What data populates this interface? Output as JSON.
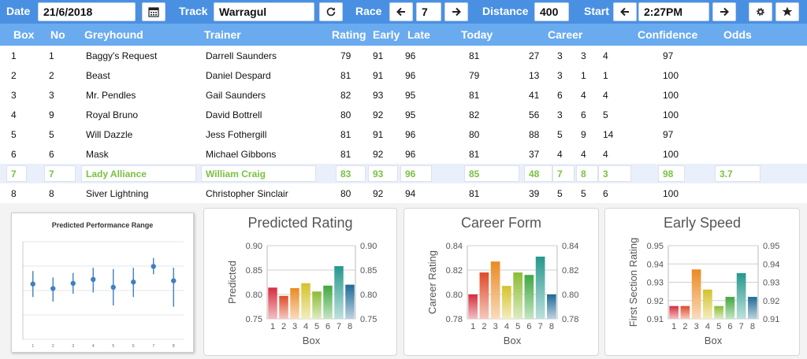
{
  "toolbar": {
    "date_label": "Date",
    "date_value": "21/6/2018",
    "track_label": "Track",
    "track_value": "Warragul",
    "race_label": "Race",
    "race_value": "7",
    "distance_label": "Distance",
    "distance_value": "400",
    "start_label": "Start",
    "start_value": "2:27PM"
  },
  "columns": [
    "Box",
    "No",
    "Greyhound",
    "Trainer",
    "Rating",
    "Early",
    "Late",
    "Today",
    "Career",
    "Confidence",
    "Odds"
  ],
  "rows": [
    {
      "box": "1",
      "no": "1",
      "dog": "Baggy's Request",
      "trainer": "Darrell Saunders",
      "rating": "79",
      "early": "91",
      "late": "96",
      "today": "81",
      "c1": "27",
      "c2": "3",
      "c3": "3",
      "c4": "4",
      "conf": "97",
      "odds": ""
    },
    {
      "box": "2",
      "no": "2",
      "dog": "Beast",
      "trainer": "Daniel Despard",
      "rating": "81",
      "early": "91",
      "late": "96",
      "today": "79",
      "c1": "13",
      "c2": "3",
      "c3": "1",
      "c4": "1",
      "conf": "100",
      "odds": ""
    },
    {
      "box": "3",
      "no": "3",
      "dog": "Mr. Pendles",
      "trainer": "Gail Saunders",
      "rating": "82",
      "early": "93",
      "late": "95",
      "today": "81",
      "c1": "41",
      "c2": "6",
      "c3": "4",
      "c4": "4",
      "conf": "100",
      "odds": ""
    },
    {
      "box": "4",
      "no": "9",
      "dog": "Royal Bruno",
      "trainer": "David Bottrell",
      "rating": "80",
      "early": "92",
      "late": "95",
      "today": "82",
      "c1": "56",
      "c2": "3",
      "c3": "6",
      "c4": "5",
      "conf": "100",
      "odds": ""
    },
    {
      "box": "5",
      "no": "5",
      "dog": "Will Dazzle",
      "trainer": "Jess Fothergill",
      "rating": "81",
      "early": "91",
      "late": "96",
      "today": "80",
      "c1": "88",
      "c2": "5",
      "c3": "9",
      "c4": "14",
      "conf": "97",
      "odds": ""
    },
    {
      "box": "6",
      "no": "6",
      "dog": "Mask",
      "trainer": "Michael Gibbons",
      "rating": "81",
      "early": "92",
      "late": "96",
      "today": "81",
      "c1": "37",
      "c2": "4",
      "c3": "4",
      "c4": "4",
      "conf": "100",
      "odds": ""
    },
    {
      "box": "7",
      "no": "7",
      "dog": "Lady Alliance",
      "trainer": "William Craig",
      "rating": "83",
      "early": "93",
      "late": "96",
      "today": "85",
      "c1": "48",
      "c2": "7",
      "c3": "8",
      "c4": "3",
      "conf": "98",
      "odds": "3.7"
    },
    {
      "box": "8",
      "no": "8",
      "dog": "Siver Lightning",
      "trainer": "Christopher Sinclair",
      "rating": "80",
      "early": "92",
      "late": "94",
      "today": "81",
      "c1": "39",
      "c2": "5",
      "c3": "5",
      "c4": "6",
      "conf": "100",
      "odds": ""
    }
  ],
  "selected_row_index": 6,
  "thumbnail": {
    "title": "Predicted Performance Range",
    "points": [
      0.835,
      0.828,
      0.836,
      0.842,
      0.83,
      0.838,
      0.862,
      0.84
    ],
    "lows": [
      0.815,
      0.808,
      0.82,
      0.822,
      0.802,
      0.815,
      0.85,
      0.8
    ],
    "highs": [
      0.855,
      0.845,
      0.852,
      0.86,
      0.858,
      0.86,
      0.875,
      0.86
    ],
    "ticks": [
      "1",
      "2",
      "3",
      "4",
      "5",
      "6",
      "7",
      "8"
    ]
  },
  "chart_data": [
    {
      "type": "bar",
      "title": "Predicted Rating",
      "ylabel": "Predicted",
      "xlabel": "Box",
      "categories": [
        "1",
        "2",
        "3",
        "4",
        "5",
        "6",
        "7",
        "8"
      ],
      "values": [
        0.814,
        0.797,
        0.813,
        0.823,
        0.806,
        0.818,
        0.858,
        0.82
      ],
      "ylim": [
        0.75,
        0.9
      ],
      "yticks": [
        "0.75",
        "0.80",
        "0.85",
        "0.90"
      ]
    },
    {
      "type": "bar",
      "title": "Career Form",
      "ylabel": "Career Rating",
      "xlabel": "Box",
      "categories": [
        "1",
        "2",
        "3",
        "4",
        "5",
        "6",
        "7",
        "8"
      ],
      "values": [
        0.8,
        0.818,
        0.827,
        0.807,
        0.818,
        0.816,
        0.831,
        0.8
      ],
      "ylim": [
        0.78,
        0.84
      ],
      "yticks": [
        "0.78",
        "0.80",
        "0.82",
        "0.84"
      ]
    },
    {
      "type": "bar",
      "title": "Early Speed",
      "ylabel": "First Section Rating",
      "xlabel": "Box",
      "categories": [
        "1",
        "2",
        "3",
        "4",
        "5",
        "6",
        "7",
        "8"
      ],
      "values": [
        0.917,
        0.917,
        0.937,
        0.926,
        0.917,
        0.922,
        0.935,
        0.922
      ],
      "ylim": [
        0.91,
        0.95
      ],
      "yticks": [
        "0.91",
        "0.92",
        "0.93",
        "0.94",
        "0.95"
      ]
    }
  ],
  "bar_colors": [
    "#d62c3e",
    "#e04a28",
    "#ea8a22",
    "#d4c22a",
    "#8cbb33",
    "#3fa83f",
    "#26988c",
    "#1f6a96"
  ]
}
